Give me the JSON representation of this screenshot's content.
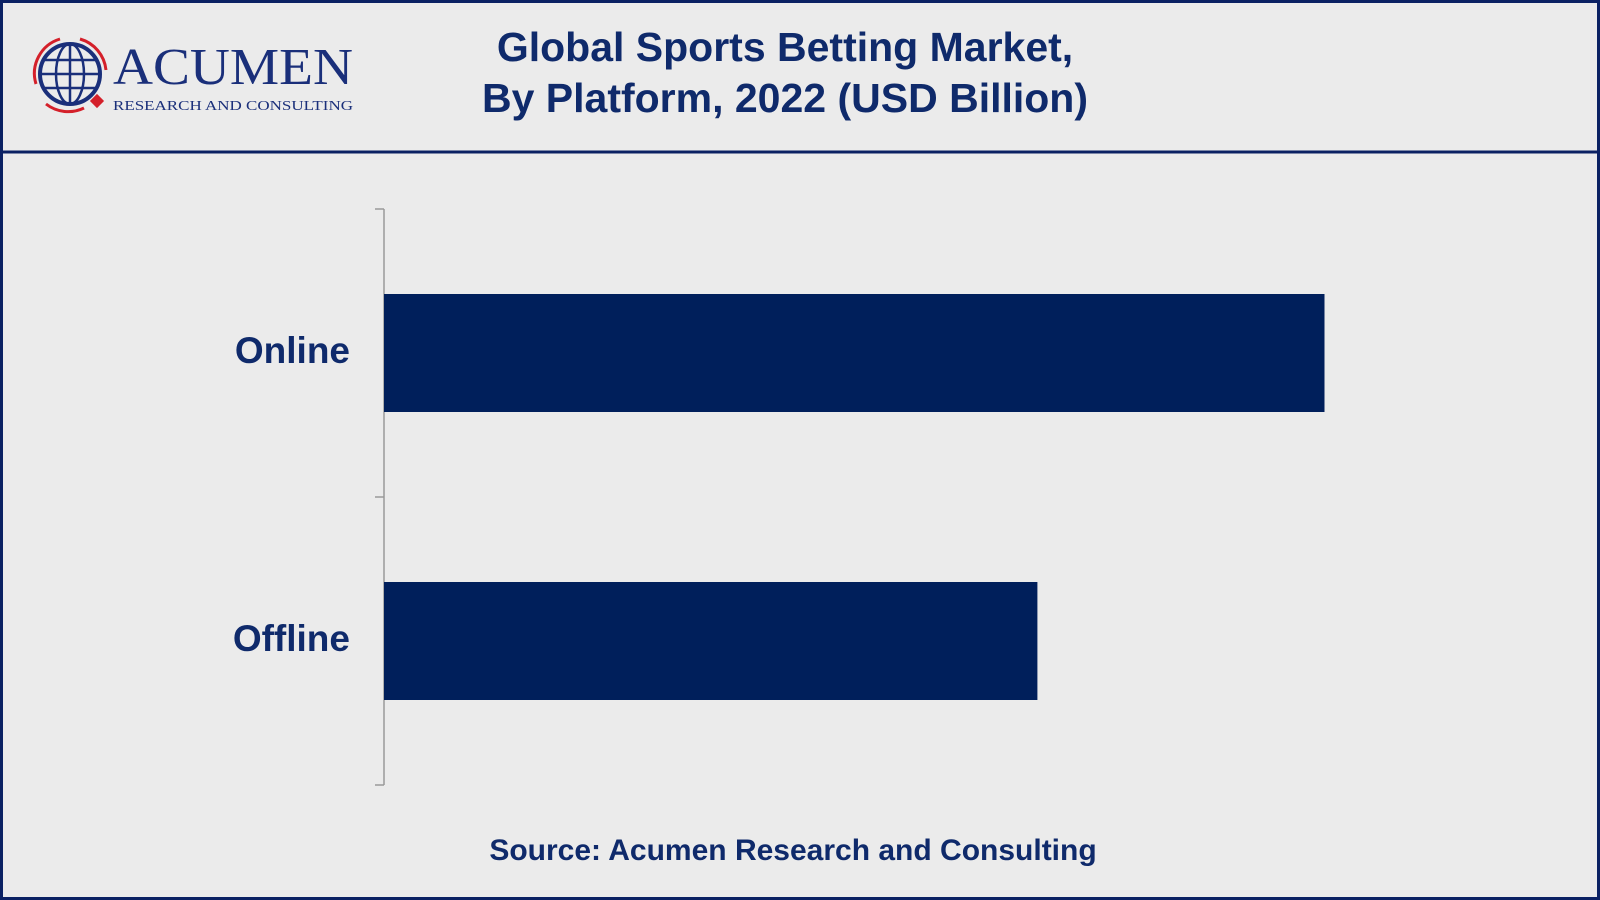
{
  "logo": {
    "name": "ACUMEN",
    "tagline": "RESEARCH AND CONSULTING"
  },
  "chart_data": {
    "type": "hbar",
    "title": "Global Sports Betting Market,\nBy Platform, 2022 (USD Billion)",
    "categories": [
      "Online",
      "Offline"
    ],
    "values": [
      85.5,
      59.4
    ],
    "color": "#001f5b",
    "xlim": [
      0,
      100
    ],
    "source": "Source: Acumen Research and Consulting"
  }
}
